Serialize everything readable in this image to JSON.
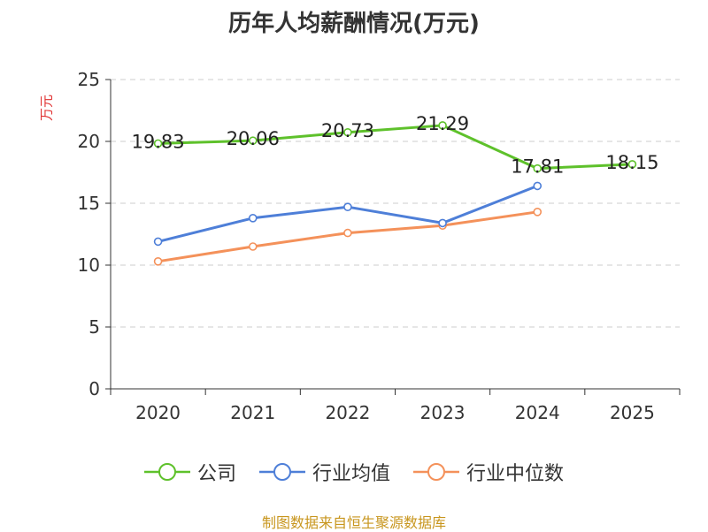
{
  "chart_data": {
    "type": "line",
    "title": "历年人均薪酬情况(万元)",
    "ylabel": "万元",
    "xlabel": "",
    "categories": [
      "2020",
      "2021",
      "2022",
      "2023",
      "2024",
      "2025"
    ],
    "ylim": [
      0,
      25
    ],
    "yticks": [
      0,
      5,
      10,
      15,
      20,
      25
    ],
    "grid": true,
    "legend_position": "bottom",
    "series": [
      {
        "name": "公司",
        "color": "#5ec12b",
        "values": [
          19.83,
          20.06,
          20.73,
          21.29,
          17.81,
          18.15
        ],
        "labels": [
          "19.83",
          "20.06",
          "20.73",
          "21.29",
          "17.81",
          "18.15"
        ]
      },
      {
        "name": "行业均值",
        "color": "#4e7fd8",
        "values": [
          11.9,
          13.8,
          14.7,
          13.4,
          16.4,
          null
        ]
      },
      {
        "name": "行业中位数",
        "color": "#f4915a",
        "values": [
          10.3,
          11.5,
          12.6,
          13.2,
          14.3,
          null
        ]
      }
    ]
  },
  "footer": "制图数据来自恒生聚源数据库"
}
